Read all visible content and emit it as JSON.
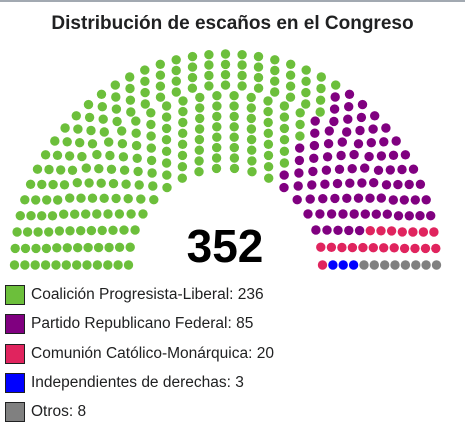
{
  "chart_data": {
    "type": "parliament",
    "title": "Distribución de escaños en el Congreso",
    "total_label": "352",
    "parties": [
      {
        "name": "Coalición Progresista-Liberal",
        "seats": 236,
        "color": "#6cbf3b"
      },
      {
        "name": "Partido Republicano Federal",
        "seats": 85,
        "color": "#800080"
      },
      {
        "name": "Comunión Católico-Monárquica",
        "seats": 20,
        "color": "#e0245e"
      },
      {
        "name": "Independientes de derechas",
        "seats": 3,
        "color": "#0000ff"
      },
      {
        "name": "Otros",
        "seats": 8,
        "color": "#808080"
      }
    ]
  }
}
